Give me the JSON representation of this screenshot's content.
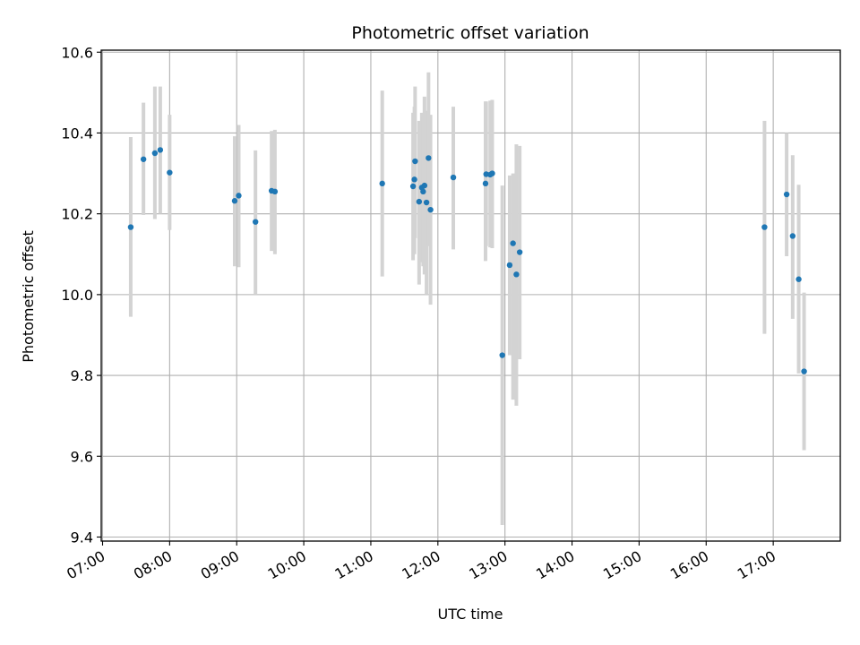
{
  "chart_data": {
    "type": "scatter",
    "title": "Photometric offset variation",
    "xlabel": "UTC time",
    "ylabel": "Photometric offset",
    "x_unit": "hours UTC",
    "xlim": [
      6.98,
      18.0
    ],
    "ylim": [
      9.39,
      10.605
    ],
    "x_ticks": [
      7,
      8,
      9,
      10,
      11,
      12,
      13,
      14,
      15,
      16,
      17
    ],
    "x_tick_labels": [
      "07:00",
      "08:00",
      "09:00",
      "10:00",
      "11:00",
      "12:00",
      "13:00",
      "14:00",
      "15:00",
      "16:00",
      "17:00"
    ],
    "y_ticks": [
      9.4,
      9.6,
      9.8,
      10.0,
      10.2,
      10.4,
      10.6
    ],
    "y_tick_labels": [
      "9.4",
      "9.6",
      "9.8",
      "10.0",
      "10.2",
      "10.4",
      "10.6"
    ],
    "grid": true,
    "colors": {
      "point": "#1f77b4",
      "errorbar": "#d3d3d3",
      "grid": "#b0b0b0"
    },
    "points": [
      {
        "x": 7.42,
        "y": 10.167,
        "low": 9.945,
        "high": 10.39
      },
      {
        "x": 7.61,
        "y": 10.335,
        "low": 10.197,
        "high": 10.475
      },
      {
        "x": 7.78,
        "y": 10.35,
        "low": 10.187,
        "high": 10.515
      },
      {
        "x": 7.86,
        "y": 10.358,
        "low": 10.2,
        "high": 10.515
      },
      {
        "x": 8.0,
        "y": 10.302,
        "low": 10.16,
        "high": 10.445
      },
      {
        "x": 8.97,
        "y": 10.232,
        "low": 10.07,
        "high": 10.392
      },
      {
        "x": 9.03,
        "y": 10.245,
        "low": 10.068,
        "high": 10.42
      },
      {
        "x": 9.28,
        "y": 10.18,
        "low": 10.0,
        "high": 10.357
      },
      {
        "x": 9.52,
        "y": 10.257,
        "low": 10.108,
        "high": 10.405
      },
      {
        "x": 9.57,
        "y": 10.255,
        "low": 10.1,
        "high": 10.408
      },
      {
        "x": 11.17,
        "y": 10.275,
        "low": 10.045,
        "high": 10.505
      },
      {
        "x": 11.63,
        "y": 10.268,
        "low": 10.085,
        "high": 10.45
      },
      {
        "x": 11.65,
        "y": 10.285,
        "low": 10.1,
        "high": 10.465
      },
      {
        "x": 11.66,
        "y": 10.33,
        "low": 10.14,
        "high": 10.515
      },
      {
        "x": 11.72,
        "y": 10.23,
        "low": 10.025,
        "high": 10.43
      },
      {
        "x": 11.76,
        "y": 10.265,
        "low": 10.08,
        "high": 10.45
      },
      {
        "x": 11.78,
        "y": 10.255,
        "low": 10.07,
        "high": 10.44
      },
      {
        "x": 11.8,
        "y": 10.27,
        "low": 10.05,
        "high": 10.49
      },
      {
        "x": 11.83,
        "y": 10.228,
        "low": 10.0,
        "high": 10.455
      },
      {
        "x": 11.86,
        "y": 10.338,
        "low": 10.12,
        "high": 10.55
      },
      {
        "x": 11.89,
        "y": 10.21,
        "low": 9.975,
        "high": 10.445
      },
      {
        "x": 12.23,
        "y": 10.29,
        "low": 10.112,
        "high": 10.465
      },
      {
        "x": 12.71,
        "y": 10.275,
        "low": 10.083,
        "high": 10.478
      },
      {
        "x": 12.72,
        "y": 10.298,
        "low": 10.12,
        "high": 10.478
      },
      {
        "x": 12.78,
        "y": 10.297,
        "low": 10.117,
        "high": 10.48
      },
      {
        "x": 12.81,
        "y": 10.3,
        "low": 10.115,
        "high": 10.482
      },
      {
        "x": 12.96,
        "y": 9.85,
        "low": 9.43,
        "high": 10.27
      },
      {
        "x": 13.07,
        "y": 10.073,
        "low": 9.85,
        "high": 10.295
      },
      {
        "x": 13.12,
        "y": 10.127,
        "low": 9.74,
        "high": 10.3
      },
      {
        "x": 13.17,
        "y": 10.05,
        "low": 9.725,
        "high": 10.372
      },
      {
        "x": 13.22,
        "y": 10.105,
        "low": 9.84,
        "high": 10.368
      },
      {
        "x": 16.87,
        "y": 10.167,
        "low": 9.903,
        "high": 10.43
      },
      {
        "x": 17.2,
        "y": 10.248,
        "low": 10.095,
        "high": 10.4
      },
      {
        "x": 17.29,
        "y": 10.145,
        "low": 9.94,
        "high": 10.345
      },
      {
        "x": 17.38,
        "y": 10.038,
        "low": 9.805,
        "high": 10.272
      },
      {
        "x": 17.46,
        "y": 9.81,
        "low": 9.615,
        "high": 10.005
      }
    ]
  }
}
